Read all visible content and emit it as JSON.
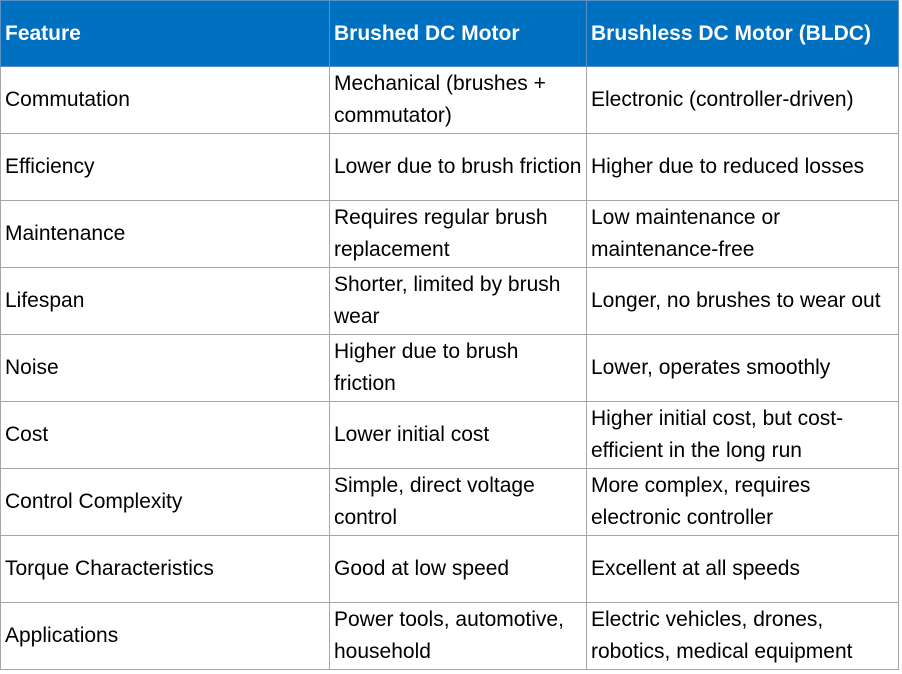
{
  "table": {
    "header": [
      "Feature",
      "Brushed DC Motor",
      "Brushless DC Motor (BLDC)"
    ],
    "rows": [
      [
        "Commutation",
        "Mechanical (brushes + commutator)",
        "Electronic (controller-driven)"
      ],
      [
        "Efficiency",
        "Lower due to brush friction",
        "Higher due to reduced losses"
      ],
      [
        "Maintenance",
        "Requires regular brush replacement",
        "Low maintenance or maintenance-free"
      ],
      [
        "Lifespan",
        "Shorter, limited by brush wear",
        "Longer, no brushes to wear out"
      ],
      [
        "Noise",
        "Higher due to brush friction",
        "Lower, operates smoothly"
      ],
      [
        "Cost",
        "Lower initial cost",
        "Higher initial cost, but cost-efficient in the long run"
      ],
      [
        "Control Complexity",
        "Simple, direct voltage control",
        "More complex, requires electronic controller"
      ],
      [
        "Torque Characteristics",
        "Good at low speed",
        "Excellent at all speeds"
      ],
      [
        "Applications",
        "Power tools, automotive, household",
        "Electric vehicles, drones, robotics, medical equipment"
      ]
    ]
  }
}
